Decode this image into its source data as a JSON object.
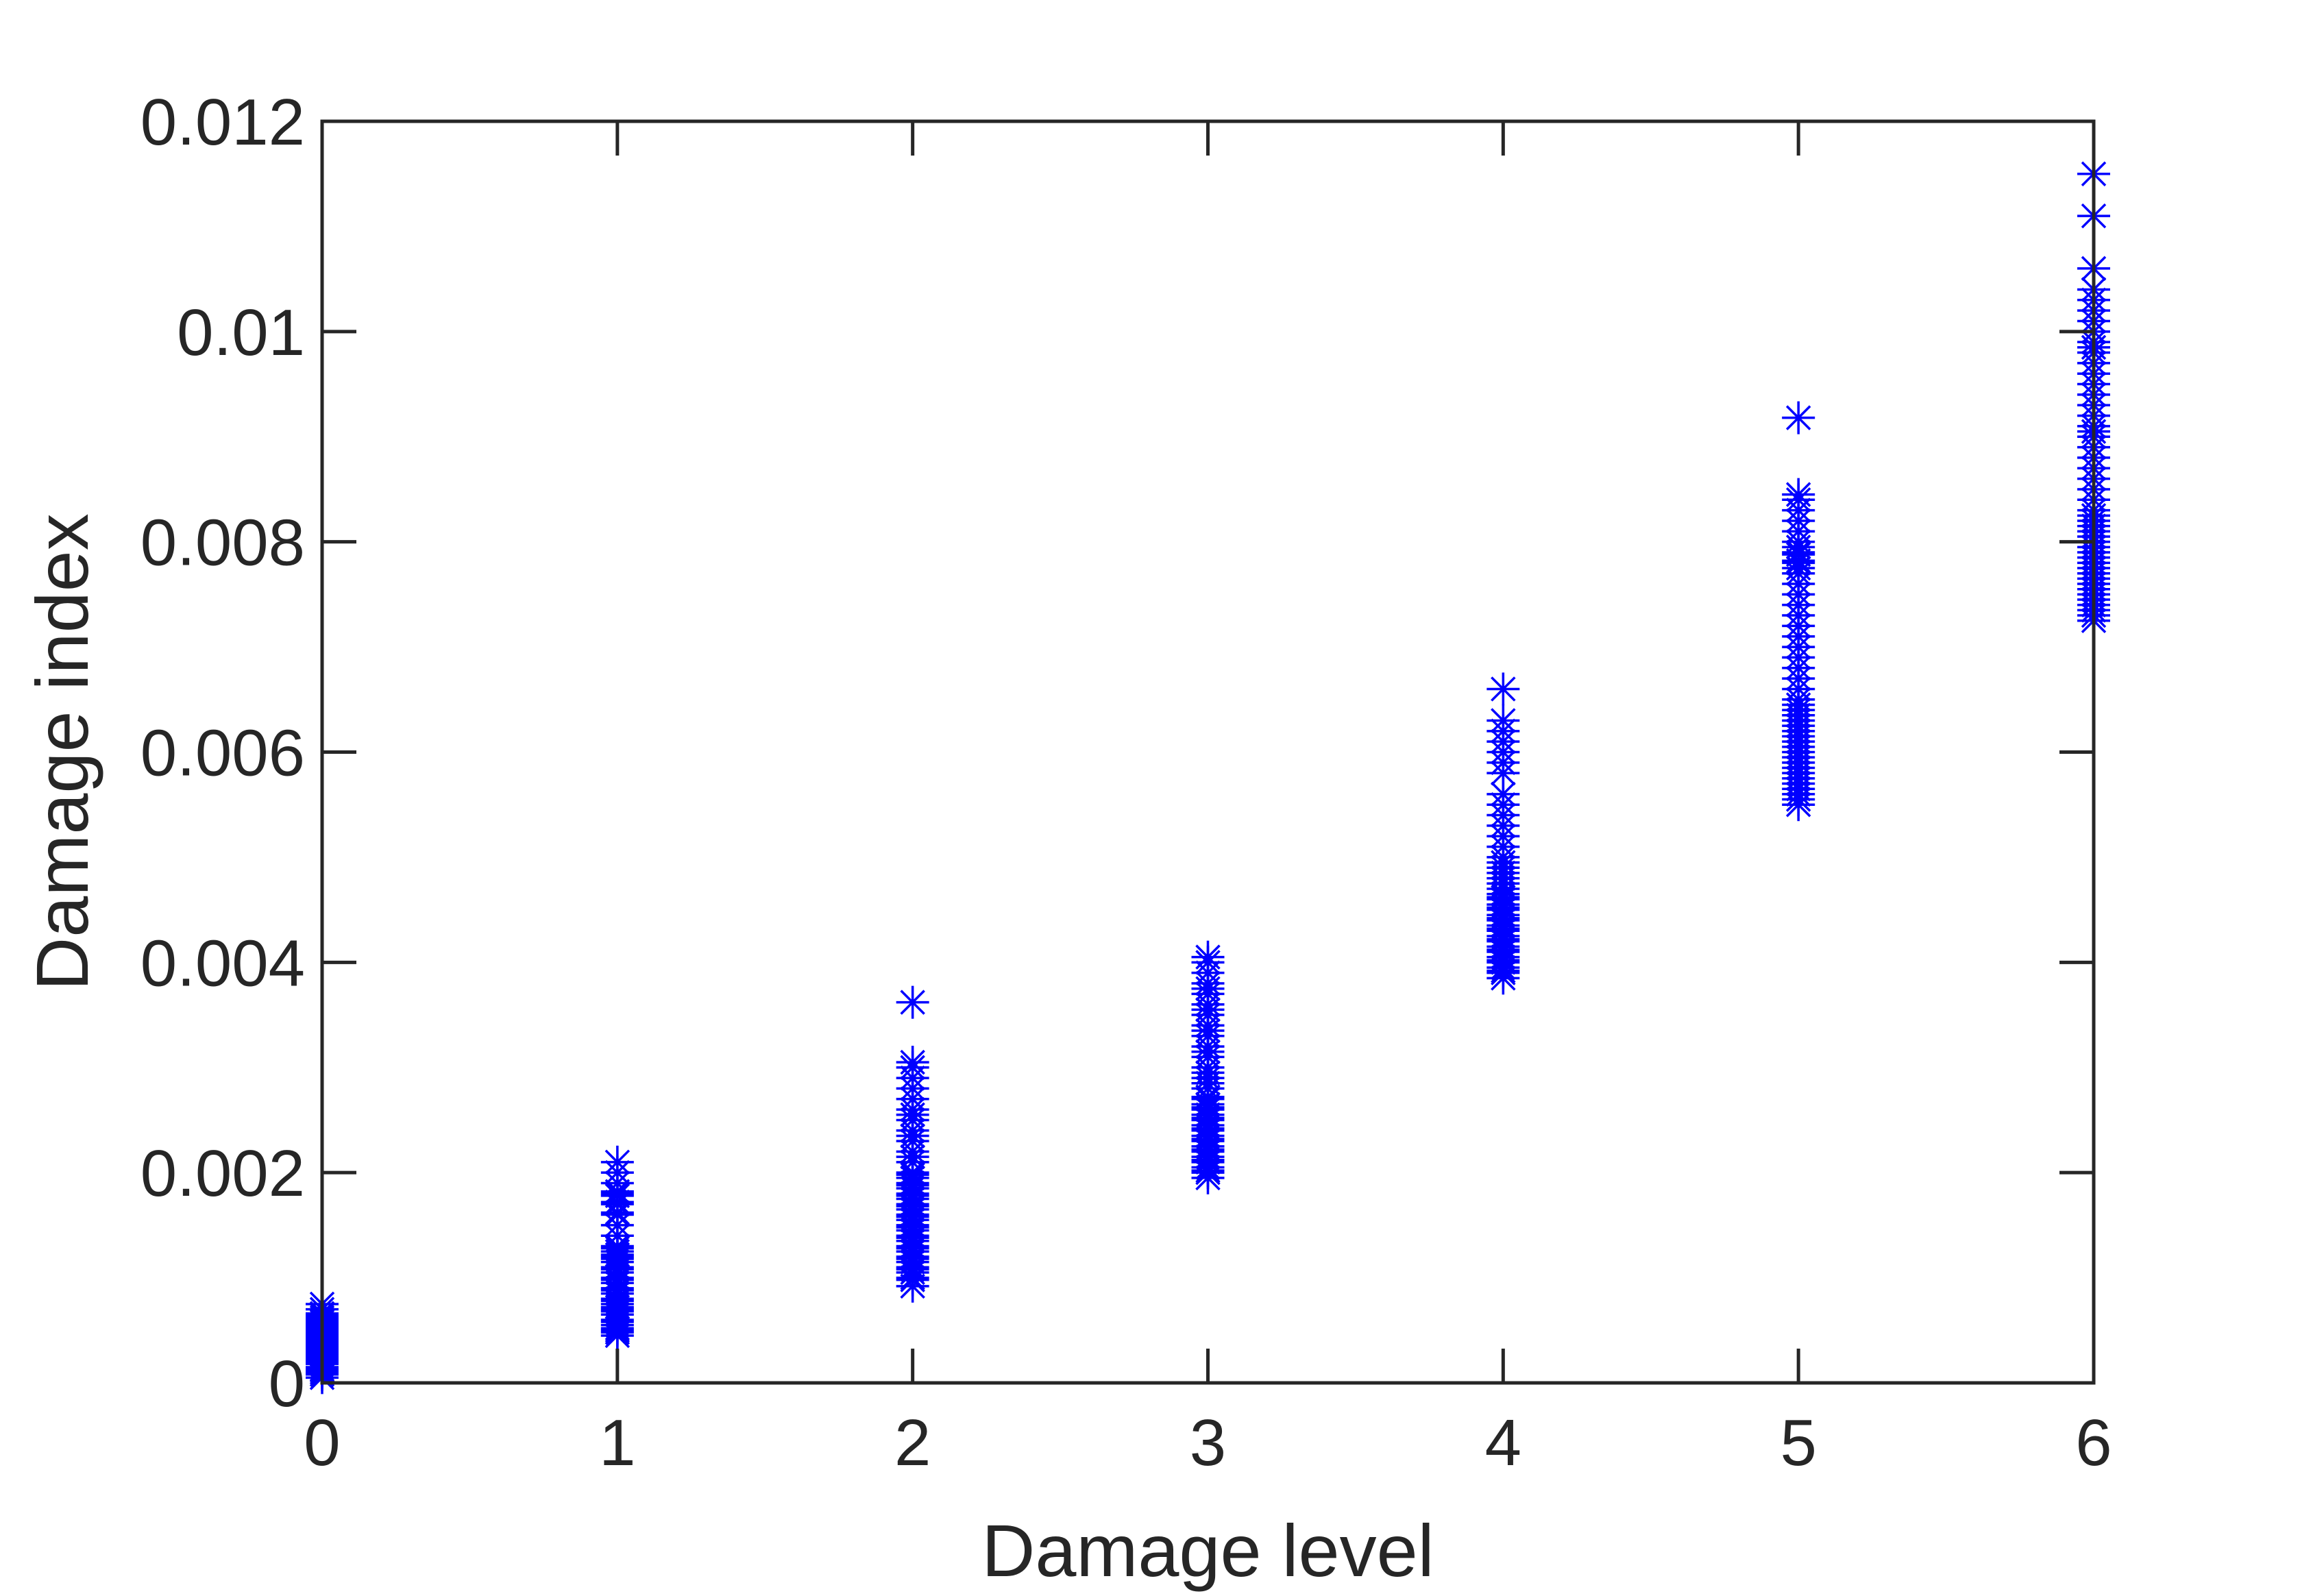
{
  "chart_data": {
    "type": "scatter",
    "title": "",
    "xlabel": "Damage level",
    "ylabel": "Damage index",
    "xlim": [
      0,
      6
    ],
    "ylim": [
      0,
      0.012
    ],
    "xticks": [
      0,
      1,
      2,
      3,
      4,
      5,
      6
    ],
    "xtick_labels": [
      "0",
      "1",
      "2",
      "3",
      "4",
      "5",
      "6"
    ],
    "yticks": [
      0,
      0.002,
      0.004,
      0.006,
      0.008,
      0.01,
      0.012
    ],
    "ytick_labels": [
      "0",
      "0.002",
      "0.004",
      "0.006",
      "0.008",
      "0.01",
      "0.012"
    ],
    "grid": false,
    "marker": "asterisk",
    "marker_color": "#0000ff",
    "axis_color": "#262626",
    "series": [
      {
        "x": [
          0,
          0,
          0,
          0,
          0,
          0,
          0,
          0,
          0,
          0,
          0,
          0,
          0,
          0,
          0,
          0,
          0,
          0,
          0,
          0,
          0,
          0,
          0,
          0,
          0,
          0,
          0,
          0,
          0,
          0,
          0,
          0,
          0,
          0,
          0,
          0,
          0,
          0,
          0,
          0
        ],
        "y": [
          5e-05,
          0.0001,
          0.00012,
          0.00015,
          0.00018,
          0.0002,
          0.00022,
          0.00025,
          0.00027,
          0.0003,
          0.00032,
          0.00034,
          0.00036,
          0.00038,
          0.0004,
          0.00042,
          0.00044,
          0.00046,
          0.00048,
          0.0005,
          0.00052,
          0.00054,
          0.00056,
          0.00058,
          0.0006,
          0.00062,
          0.00064,
          0.00066,
          0.0007,
          0.00075,
          8e-05,
          0.00013,
          0.00019,
          0.00024,
          0.00029,
          0.00035,
          0.00041,
          0.00047,
          0.00053,
          0.00059
        ]
      },
      {
        "x": [
          1,
          1,
          1,
          1,
          1,
          1,
          1,
          1,
          1,
          1,
          1,
          1,
          1,
          1,
          1,
          1,
          1,
          1,
          1,
          1,
          1,
          1,
          1,
          1,
          1,
          1,
          1,
          1,
          1,
          1,
          1,
          1,
          1,
          1,
          1,
          1,
          1,
          1,
          1,
          1,
          1,
          1
        ],
        "y": [
          0.00045,
          0.0005,
          0.00055,
          0.0006,
          0.00065,
          0.0007,
          0.00075,
          0.0008,
          0.00085,
          0.0009,
          0.00095,
          0.001,
          0.00105,
          0.0011,
          0.00115,
          0.0012,
          0.00125,
          0.0013,
          0.0014,
          0.0015,
          0.0016,
          0.0017,
          0.0018,
          0.0019,
          0.002,
          0.0021,
          0.00048,
          0.00058,
          0.00068,
          0.00078,
          0.00088,
          0.00098,
          0.00108,
          0.00118,
          0.00122,
          0.00128,
          0.00162,
          0.00172,
          0.00178,
          0.00182,
          0.00052,
          0.00072
        ]
      },
      {
        "x": [
          2,
          2,
          2,
          2,
          2,
          2,
          2,
          2,
          2,
          2,
          2,
          2,
          2,
          2,
          2,
          2,
          2,
          2,
          2,
          2,
          2,
          2,
          2,
          2,
          2,
          2,
          2,
          2,
          2,
          2,
          2,
          2,
          2,
          2,
          2,
          2,
          2,
          2,
          2,
          2,
          2,
          2,
          2,
          2,
          2,
          2,
          2,
          2
        ],
        "y": [
          0.00092,
          0.001,
          0.00105,
          0.0011,
          0.00115,
          0.0012,
          0.00125,
          0.0013,
          0.00135,
          0.0014,
          0.00145,
          0.0015,
          0.00155,
          0.0016,
          0.00165,
          0.0017,
          0.00175,
          0.0018,
          0.00185,
          0.0019,
          0.00195,
          0.002,
          0.0021,
          0.0022,
          0.0023,
          0.0024,
          0.0025,
          0.0026,
          0.0027,
          0.0028,
          0.0029,
          0.003,
          0.00305,
          0.00362,
          0.00098,
          0.00108,
          0.00118,
          0.00128,
          0.00138,
          0.00148,
          0.00158,
          0.00168,
          0.00178,
          0.00188,
          0.00198,
          0.00215,
          0.00235,
          0.00255
        ]
      },
      {
        "x": [
          3,
          3,
          3,
          3,
          3,
          3,
          3,
          3,
          3,
          3,
          3,
          3,
          3,
          3,
          3,
          3,
          3,
          3,
          3,
          3,
          3,
          3,
          3,
          3,
          3,
          3,
          3,
          3,
          3,
          3,
          3,
          3,
          3,
          3,
          3,
          3,
          3,
          3,
          3,
          3,
          3,
          3,
          3,
          3
        ],
        "y": [
          0.00195,
          0.002,
          0.00205,
          0.0021,
          0.00215,
          0.0022,
          0.00225,
          0.0023,
          0.00235,
          0.0024,
          0.00245,
          0.0025,
          0.00255,
          0.0026,
          0.00265,
          0.0027,
          0.0028,
          0.0029,
          0.003,
          0.0031,
          0.0032,
          0.0033,
          0.0034,
          0.0035,
          0.0036,
          0.0037,
          0.0038,
          0.0039,
          0.004,
          0.00405,
          0.00202,
          0.00212,
          0.00222,
          0.00232,
          0.00242,
          0.00252,
          0.00262,
          0.00272,
          0.00285,
          0.00295,
          0.00315,
          0.00335,
          0.00355,
          0.00375
        ]
      },
      {
        "x": [
          4,
          4,
          4,
          4,
          4,
          4,
          4,
          4,
          4,
          4,
          4,
          4,
          4,
          4,
          4,
          4,
          4,
          4,
          4,
          4,
          4,
          4,
          4,
          4,
          4,
          4,
          4,
          4,
          4,
          4,
          4,
          4,
          4,
          4,
          4,
          4,
          4,
          4,
          4,
          4,
          4,
          4,
          4,
          4,
          4
        ],
        "y": [
          0.00385,
          0.0039,
          0.00395,
          0.004,
          0.00405,
          0.0041,
          0.00415,
          0.0042,
          0.00425,
          0.0043,
          0.00435,
          0.0044,
          0.00445,
          0.0045,
          0.00455,
          0.0046,
          0.00465,
          0.0047,
          0.00475,
          0.0048,
          0.00485,
          0.0049,
          0.00495,
          0.005,
          0.0051,
          0.0052,
          0.0053,
          0.0054,
          0.0055,
          0.0056,
          0.0058,
          0.0059,
          0.006,
          0.0061,
          0.0062,
          0.0063,
          0.0066,
          0.00392,
          0.00402,
          0.00412,
          0.00422,
          0.00432,
          0.00442,
          0.00452,
          0.00462
        ]
      },
      {
        "x": [
          5,
          5,
          5,
          5,
          5,
          5,
          5,
          5,
          5,
          5,
          5,
          5,
          5,
          5,
          5,
          5,
          5,
          5,
          5,
          5,
          5,
          5,
          5,
          5,
          5,
          5,
          5,
          5,
          5,
          5,
          5,
          5,
          5,
          5,
          5,
          5,
          5,
          5,
          5,
          5,
          5,
          5,
          5,
          5,
          5,
          5
        ],
        "y": [
          0.0055,
          0.0056,
          0.0057,
          0.0058,
          0.0059,
          0.006,
          0.0061,
          0.0062,
          0.0063,
          0.0064,
          0.0065,
          0.0066,
          0.0067,
          0.0068,
          0.0069,
          0.007,
          0.0071,
          0.0072,
          0.0073,
          0.0074,
          0.0075,
          0.0076,
          0.0077,
          0.0078,
          0.0079,
          0.008,
          0.0081,
          0.0082,
          0.0083,
          0.0084,
          0.00845,
          0.00918,
          0.00555,
          0.00565,
          0.00575,
          0.00585,
          0.00595,
          0.00605,
          0.00615,
          0.00625,
          0.00635,
          0.00645,
          0.00775,
          0.00782,
          0.00788,
          0.00795
        ]
      },
      {
        "x": [
          6,
          6,
          6,
          6,
          6,
          6,
          6,
          6,
          6,
          6,
          6,
          6,
          6,
          6,
          6,
          6,
          6,
          6,
          6,
          6,
          6,
          6,
          6,
          6,
          6,
          6,
          6,
          6,
          6,
          6,
          6,
          6,
          6,
          6,
          6,
          6,
          6,
          6,
          6,
          6,
          6,
          6,
          6,
          6,
          6,
          6,
          6,
          6
        ],
        "y": [
          0.00725,
          0.0073,
          0.0074,
          0.0075,
          0.0076,
          0.0077,
          0.0078,
          0.0079,
          0.008,
          0.0081,
          0.0082,
          0.0083,
          0.0084,
          0.0085,
          0.0086,
          0.0087,
          0.0088,
          0.0089,
          0.009,
          0.0091,
          0.0092,
          0.0093,
          0.0094,
          0.0095,
          0.0096,
          0.0097,
          0.0098,
          0.0099,
          0.01,
          0.0101,
          0.0102,
          0.0103,
          0.0104,
          0.0106,
          0.0111,
          0.0115,
          0.00735,
          0.00745,
          0.00755,
          0.00765,
          0.00775,
          0.00785,
          0.00795,
          0.00805,
          0.00815,
          0.00825,
          0.00905,
          0.00985
        ]
      }
    ]
  }
}
